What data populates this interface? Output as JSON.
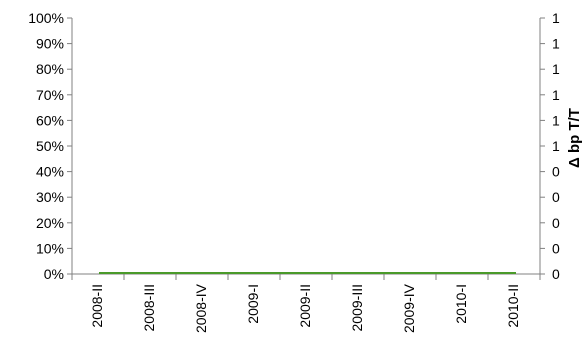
{
  "chart_data": {
    "type": "line",
    "title": "",
    "xlabel": "",
    "ylabel": "",
    "y2label": "Δ bp T/T",
    "categories": [
      "2008-II",
      "2008-III",
      "2008-IV",
      "2009-I",
      "2009-II",
      "2009-III",
      "2009-IV",
      "2010-I",
      "2010-II"
    ],
    "y_ticks": [
      "0%",
      "10%",
      "20%",
      "30%",
      "40%",
      "50%",
      "60%",
      "70%",
      "80%",
      "90%",
      "100%"
    ],
    "y2_ticks": [
      "0",
      "0",
      "0",
      "0",
      "0",
      "1",
      "1",
      "1",
      "1",
      "1",
      "1"
    ],
    "ylim": [
      0,
      100
    ],
    "series": [
      {
        "values": [
          0,
          0,
          0,
          0,
          0,
          0,
          0,
          0,
          0
        ],
        "color": "#4a9a2a"
      }
    ],
    "grid": false,
    "axis_color": "#808080"
  }
}
